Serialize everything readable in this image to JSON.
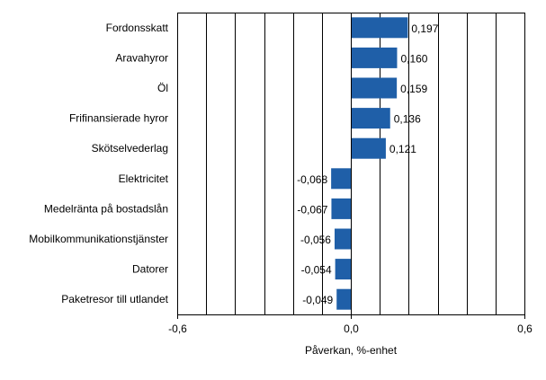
{
  "chart_data": {
    "type": "bar",
    "orientation": "horizontal",
    "categories": [
      "Fordonsskatt",
      "Aravahyror",
      "Öl",
      "Frifinansierade hyror",
      "Skötselvederlag",
      "Elektricitet",
      "Medelränta på bostadslån",
      "Mobilkommunikationstjänster",
      "Datorer",
      "Paketresor till utlandet"
    ],
    "values": [
      0.197,
      0.16,
      0.159,
      0.136,
      0.121,
      -0.068,
      -0.067,
      -0.056,
      -0.054,
      -0.049
    ],
    "value_labels": [
      "0,197",
      "0,160",
      "0,159",
      "0,136",
      "0,121",
      "-0,068",
      "-0,067",
      "-0,056",
      "-0,054",
      "-0,049"
    ],
    "xlabel": "Påverkan, %-enhet",
    "xlim": [
      -0.6,
      0.6
    ],
    "x_ticks": [
      -0.6,
      0.0,
      0.6
    ],
    "x_tick_labels": [
      "-0,6",
      "0,0",
      "0,6"
    ],
    "gridlines": [
      -0.5,
      -0.4,
      -0.3,
      -0.2,
      -0.1,
      0.1,
      0.2,
      0.3,
      0.4,
      0.5
    ],
    "bar_color": "#1f5fa8",
    "grid_color": "#000000"
  }
}
